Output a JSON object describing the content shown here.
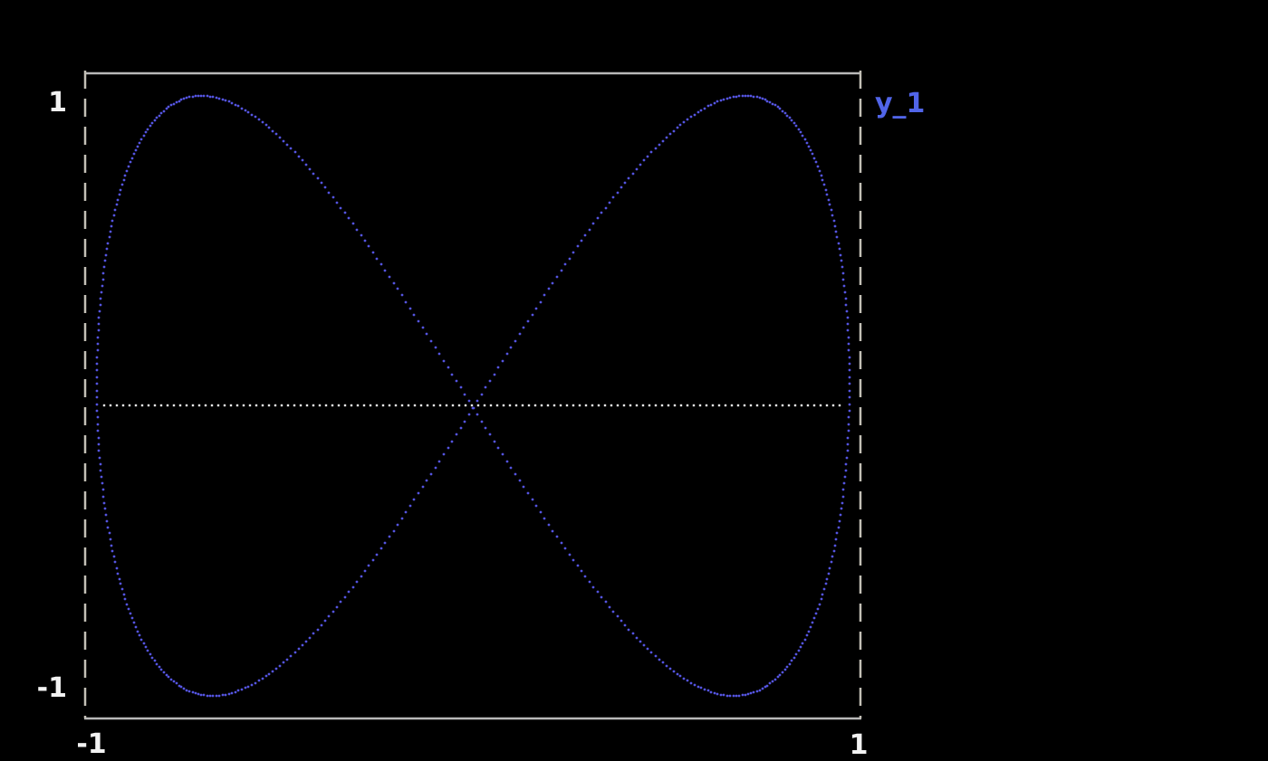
{
  "app": {
    "background_color": "#000000"
  },
  "chart_data": {
    "type": "scatter",
    "title": "",
    "description": "2:1 Lissajous bowtie curve drawn as discrete dots on a black background",
    "x_axis": {
      "range": [
        -1,
        1
      ],
      "tick_labels": [
        "-1",
        "1"
      ],
      "grid": false
    },
    "y_axis": {
      "range": [
        -1,
        1
      ],
      "tick_labels": [
        "1",
        "-1"
      ],
      "grid": false
    },
    "legend": {
      "position": "outside-top-right",
      "entries": [
        {
          "label": "y_1"
        }
      ]
    },
    "series": [
      {
        "name": "y_1",
        "marker": "dot",
        "parametric": {
          "x_expr": "0.97*cos(t)",
          "y_expr": "0.93*sin(2*t + 0.04)",
          "x_amplitude": 0.97,
          "x_freq": 1,
          "y_amplitude": 0.93,
          "y_freq": 2,
          "y_phase": 0.04,
          "t_start": 0,
          "t_end": 6.283185,
          "samples": 560
        }
      }
    ],
    "zero_line": {
      "y": -0.03,
      "x_start": -0.95,
      "x_end": 0.96,
      "style": "dotted"
    },
    "frame": {
      "top_bottom_style": "solid",
      "left_right_style": "dashed"
    },
    "colors": {
      "series_dots": "#5454e0",
      "zero_line_dots": "#ebebeb",
      "frame_solid": "#b9b9b9",
      "frame_dash": "#c3c0b6",
      "tick_text": "#f2f2f2",
      "legend_text": "#5165e9",
      "background": "#000000"
    }
  }
}
